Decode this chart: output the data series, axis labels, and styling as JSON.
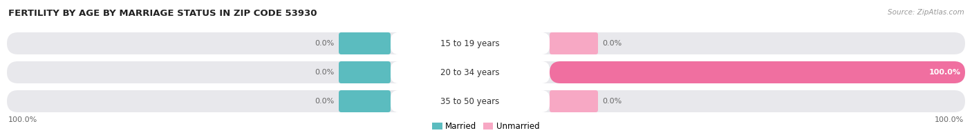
{
  "title": "FERTILITY BY AGE BY MARRIAGE STATUS IN ZIP CODE 53930",
  "source": "Source: ZipAtlas.com",
  "categories": [
    "15 to 19 years",
    "20 to 34 years",
    "35 to 50 years"
  ],
  "married_values": [
    0.0,
    0.0,
    0.0
  ],
  "unmarried_values": [
    0.0,
    100.0,
    0.0
  ],
  "married_color": "#5bbcbf",
  "unmarried_color": "#f06fa0",
  "unmarried_color_light": "#f7a8c4",
  "bar_bg_color": "#e8e8ec",
  "title_fontsize": 9.5,
  "source_fontsize": 7.5,
  "label_fontsize": 8,
  "category_fontsize": 8.5,
  "legend_fontsize": 8.5,
  "left_extreme_label": "100.0%",
  "right_extreme_label": "100.0%",
  "background_color": "#ffffff",
  "center_label_bg": "#ffffff"
}
